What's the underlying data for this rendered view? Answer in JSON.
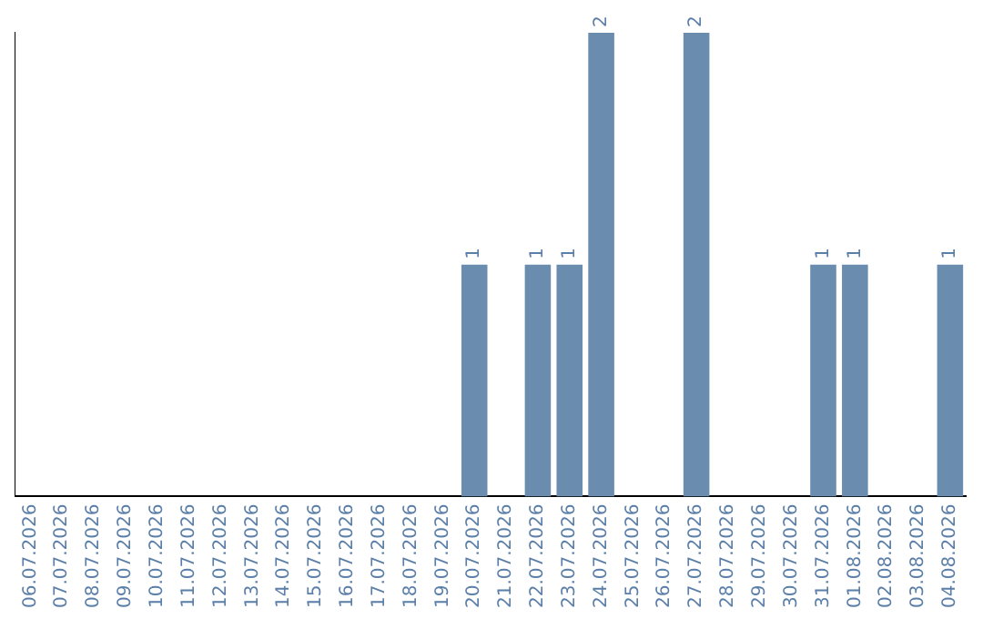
{
  "chart_data": {
    "type": "bar",
    "categories": [
      "06.07.2026",
      "07.07.2026",
      "08.07.2026",
      "09.07.2026",
      "10.07.2026",
      "11.07.2026",
      "12.07.2026",
      "13.07.2026",
      "14.07.2026",
      "15.07.2026",
      "16.07.2026",
      "17.07.2026",
      "18.07.2026",
      "19.07.2026",
      "20.07.2026",
      "21.07.2026",
      "22.07.2026",
      "23.07.2026",
      "24.07.2026",
      "25.07.2026",
      "26.07.2026",
      "27.07.2026",
      "28.07.2026",
      "29.07.2026",
      "30.07.2026",
      "31.07.2026",
      "01.08.2026",
      "02.08.2026",
      "03.08.2026",
      "04.08.2026"
    ],
    "values": [
      null,
      null,
      null,
      null,
      null,
      null,
      null,
      null,
      null,
      null,
      null,
      null,
      null,
      null,
      1,
      null,
      1,
      1,
      2,
      null,
      null,
      2,
      null,
      null,
      null,
      1,
      1,
      null,
      null,
      1
    ],
    "color": "#6a8caf",
    "ylim": [
      0,
      2
    ],
    "tick_labels": "x",
    "grid": false,
    "legend": false,
    "data_labels": true
  }
}
